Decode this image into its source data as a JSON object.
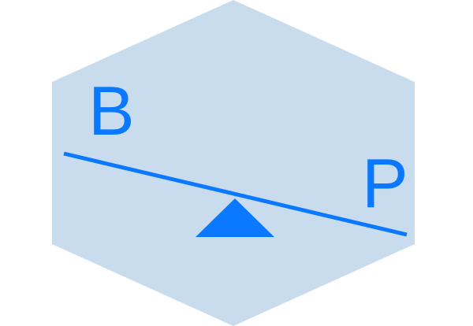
{
  "logo": {
    "left_letter": "B",
    "right_letter": "P",
    "colors": {
      "hexagon_fill": "#c8dcee",
      "accent": "#0a78ff",
      "background": "#ffffff"
    },
    "icon": "seesaw-balance-icon"
  }
}
